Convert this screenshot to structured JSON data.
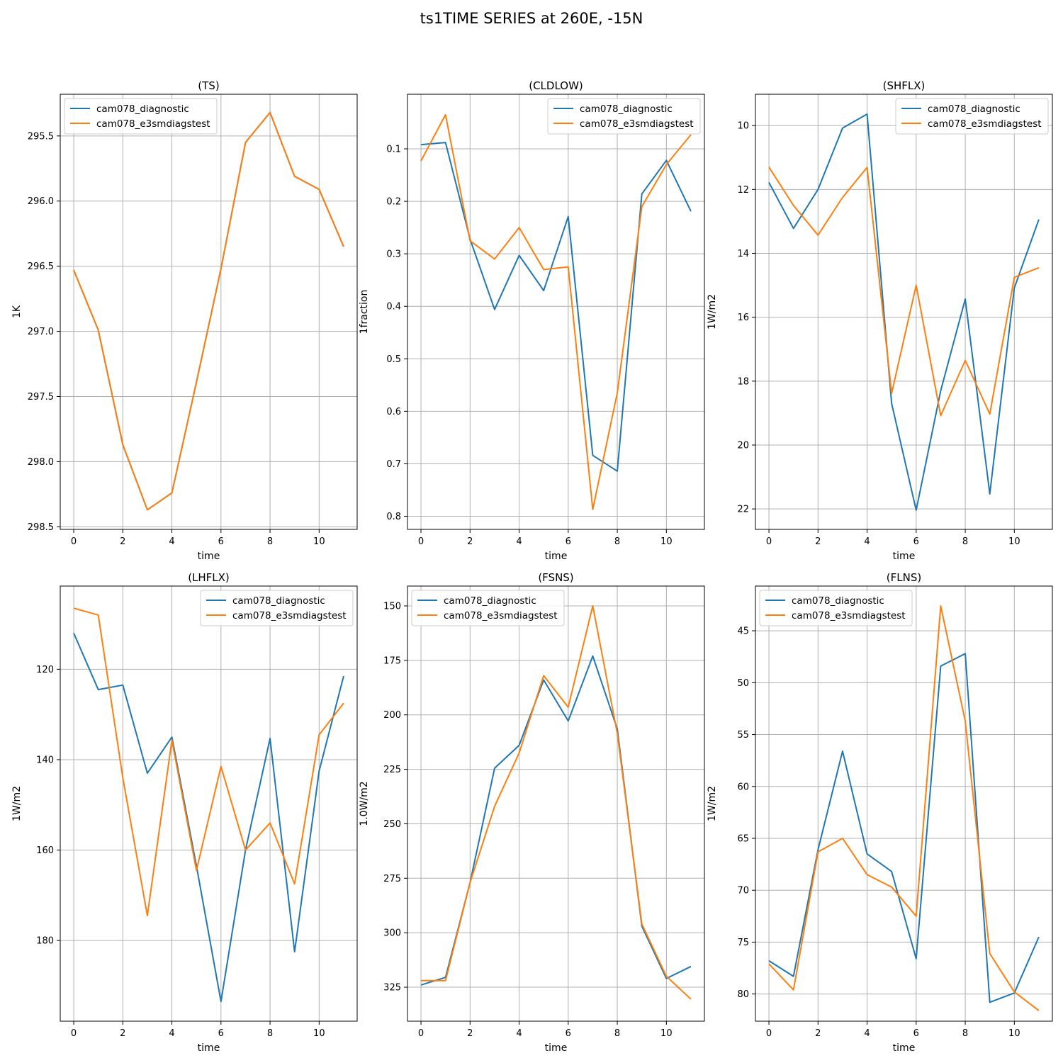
{
  "suptitle": "ts1TIME SERIES at 260E, -15N",
  "colors": {
    "series_1": "#1f77b4",
    "series_2": "#ff7f0e",
    "grid": "#b0b0b0"
  },
  "chart_data": [
    {
      "type": "line",
      "title": "(TS)",
      "xlabel": "time",
      "ylabel": "1K",
      "y_inverted": true,
      "grid": true,
      "legend": "upper-left",
      "xlim": [
        -0.55,
        11.55
      ],
      "xticks": [
        0,
        2,
        4,
        6,
        8,
        10
      ],
      "ylim": [
        298.52,
        295.18
      ],
      "yticks": [
        295.5,
        296.0,
        296.5,
        297.0,
        297.5,
        298.0,
        298.5
      ],
      "tick_decimals": 1,
      "x": [
        0,
        1,
        2,
        3,
        4,
        5,
        6,
        7,
        8,
        9,
        10,
        11
      ],
      "series": [
        {
          "name": "cam078_diagnostic",
          "values": [
            296.53,
            296.99,
            297.87,
            298.37,
            298.24,
            297.39,
            296.52,
            295.55,
            295.32,
            295.81,
            295.91,
            296.35
          ]
        },
        {
          "name": "cam078_e3smdiagstest",
          "values": [
            296.53,
            296.99,
            297.87,
            298.37,
            298.24,
            297.39,
            296.52,
            295.55,
            295.32,
            295.81,
            295.91,
            296.35
          ]
        }
      ]
    },
    {
      "type": "line",
      "title": "(CLDLOW)",
      "xlabel": "time",
      "ylabel": "1fraction",
      "y_inverted": true,
      "grid": true,
      "legend": "upper-right",
      "xlim": [
        -0.55,
        11.55
      ],
      "xticks": [
        0,
        2,
        4,
        6,
        8,
        10
      ],
      "ylim": [
        0.825,
        -0.004
      ],
      "yticks": [
        0.1,
        0.2,
        0.3,
        0.4,
        0.5,
        0.6,
        0.7,
        0.8
      ],
      "tick_decimals": 1,
      "x": [
        0,
        1,
        2,
        3,
        4,
        5,
        6,
        7,
        8,
        9,
        10,
        11
      ],
      "series": [
        {
          "name": "cam078_diagnostic",
          "values": [
            0.092,
            0.088,
            0.272,
            0.406,
            0.303,
            0.37,
            0.229,
            0.684,
            0.714,
            0.186,
            0.122,
            0.219
          ]
        },
        {
          "name": "cam078_e3smdiagstest",
          "values": [
            0.123,
            0.035,
            0.275,
            0.31,
            0.25,
            0.33,
            0.325,
            0.787,
            0.565,
            0.21,
            0.13,
            0.073
          ]
        }
      ]
    },
    {
      "type": "line",
      "title": "(SHFLX)",
      "xlabel": "time",
      "ylabel": "1W/m2",
      "y_inverted": true,
      "grid": true,
      "legend": "upper-right",
      "xlim": [
        -0.55,
        11.55
      ],
      "xticks": [
        0,
        2,
        4,
        6,
        8,
        10
      ],
      "ylim": [
        22.64,
        9.02
      ],
      "yticks": [
        10,
        12,
        14,
        16,
        18,
        20,
        22
      ],
      "tick_decimals": 0,
      "x": [
        0,
        1,
        2,
        3,
        4,
        5,
        6,
        7,
        8,
        9,
        10,
        11
      ],
      "series": [
        {
          "name": "cam078_diagnostic",
          "values": [
            11.78,
            13.22,
            12.0,
            10.08,
            9.64,
            18.7,
            22.04,
            18.3,
            15.43,
            21.53,
            15.08,
            12.94
          ]
        },
        {
          "name": "cam078_e3smdiagstest",
          "values": [
            11.3,
            12.5,
            13.43,
            12.25,
            11.31,
            18.38,
            15.0,
            19.08,
            17.35,
            19.03,
            14.75,
            14.45
          ]
        }
      ]
    },
    {
      "type": "line",
      "title": "(LHFLX)",
      "xlabel": "time",
      "ylabel": "1W/m2",
      "y_inverted": true,
      "grid": true,
      "legend": "upper-right",
      "xlim": [
        -0.55,
        11.55
      ],
      "xticks": [
        0,
        2,
        4,
        6,
        8,
        10
      ],
      "ylim": [
        197.85,
        101.6
      ],
      "yticks": [
        120,
        140,
        160,
        180
      ],
      "tick_decimals": 0,
      "x": [
        0,
        1,
        2,
        3,
        4,
        5,
        6,
        7,
        8,
        9,
        10,
        11
      ],
      "series": [
        {
          "name": "cam078_diagnostic",
          "values": [
            112.0,
            124.5,
            123.5,
            143.0,
            135.0,
            163.5,
            193.5,
            160.0,
            135.3,
            182.5,
            142.5,
            121.5
          ]
        },
        {
          "name": "cam078_e3smdiagstest",
          "values": [
            106.5,
            108.0,
            144.0,
            174.5,
            135.7,
            164.5,
            141.5,
            160.0,
            154.0,
            167.5,
            134.5,
            127.5
          ]
        }
      ]
    },
    {
      "type": "line",
      "title": "(FSNS)",
      "xlabel": "time",
      "ylabel": "1.0W/m2",
      "y_inverted": true,
      "grid": true,
      "legend": "upper-left",
      "xlim": [
        -0.55,
        11.55
      ],
      "xticks": [
        0,
        2,
        4,
        6,
        8,
        10
      ],
      "ylim": [
        340.6,
        140.9
      ],
      "yticks": [
        150,
        175,
        200,
        225,
        250,
        275,
        300,
        325
      ],
      "tick_decimals": 0,
      "x": [
        0,
        1,
        2,
        3,
        4,
        5,
        6,
        7,
        8,
        9,
        10,
        11
      ],
      "series": [
        {
          "name": "cam078_diagnostic",
          "values": [
            324.0,
            320.5,
            277.0,
            224.5,
            214.0,
            184.0,
            202.8,
            173.0,
            206.5,
            297.0,
            321.0,
            315.5
          ]
        },
        {
          "name": "cam078_e3smdiagstest",
          "values": [
            322.0,
            322.0,
            277.0,
            242.0,
            217.5,
            182.0,
            196.5,
            150.0,
            208.5,
            296.0,
            320.0,
            330.5
          ]
        }
      ]
    },
    {
      "type": "line",
      "title": "(FLNS)",
      "xlabel": "time",
      "ylabel": "1W/m2",
      "y_inverted": true,
      "grid": true,
      "legend": "upper-left",
      "xlim": [
        -0.55,
        11.55
      ],
      "xticks": [
        0,
        2,
        4,
        6,
        8,
        10
      ],
      "ylim": [
        82.62,
        40.69
      ],
      "yticks": [
        45,
        50,
        55,
        60,
        65,
        70,
        75,
        80
      ],
      "tick_decimals": 0,
      "x": [
        0,
        1,
        2,
        3,
        4,
        5,
        6,
        7,
        8,
        9,
        10,
        11
      ],
      "series": [
        {
          "name": "cam078_diagnostic",
          "values": [
            76.8,
            78.3,
            66.1,
            56.6,
            66.5,
            68.2,
            76.6,
            48.4,
            47.2,
            80.8,
            79.9,
            74.5
          ]
        },
        {
          "name": "cam078_e3smdiagstest",
          "values": [
            77.1,
            79.6,
            66.3,
            65.0,
            68.5,
            69.7,
            72.5,
            42.6,
            53.7,
            76.1,
            79.8,
            81.6
          ]
        }
      ]
    }
  ]
}
